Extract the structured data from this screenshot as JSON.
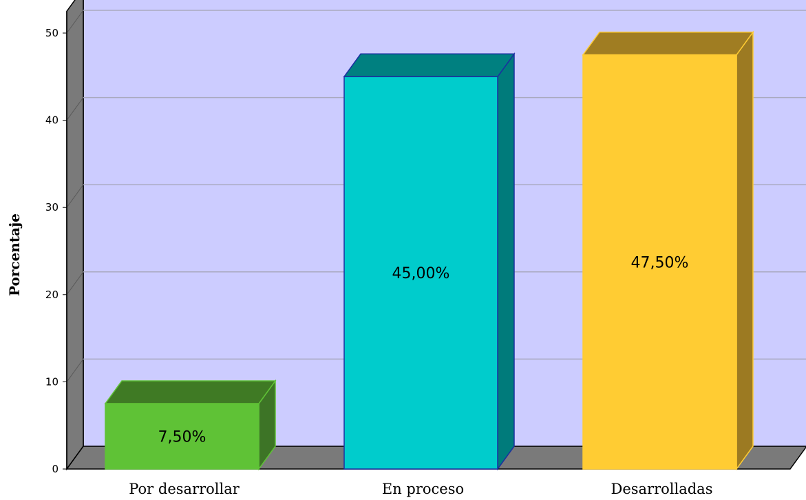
{
  "chart_data": {
    "type": "bar",
    "title": "",
    "xlabel": "",
    "ylabel": "Porcentaje",
    "categories": [
      "Por desarrollar",
      "En proceso",
      "Desarrolladas"
    ],
    "values": [
      7.5,
      45.0,
      47.5
    ],
    "data_labels": [
      "7,50%",
      "45,00%",
      "47,50%"
    ],
    "ylim": [
      0,
      52.5
    ],
    "yticks": [
      0,
      10,
      20,
      30,
      40,
      50
    ],
    "grid": true,
    "legend": "none",
    "style": "3d",
    "colors": {
      "plot_background": "#ccccff",
      "floor_and_wall": "#7a7a7a",
      "gridline": "#a9a9bf",
      "bars": [
        {
          "front": "#5fc236",
          "top": "#3f7a24",
          "side": "#3d7426",
          "border": "#5fc236"
        },
        {
          "front": "#00cccc",
          "top": "#008080",
          "side": "#007b7b",
          "border": "#1a2fa0"
        },
        {
          "front": "#ffcc33",
          "top": "#a07d22",
          "side": "#9c7a22",
          "border": "#ffcc33"
        }
      ]
    }
  }
}
